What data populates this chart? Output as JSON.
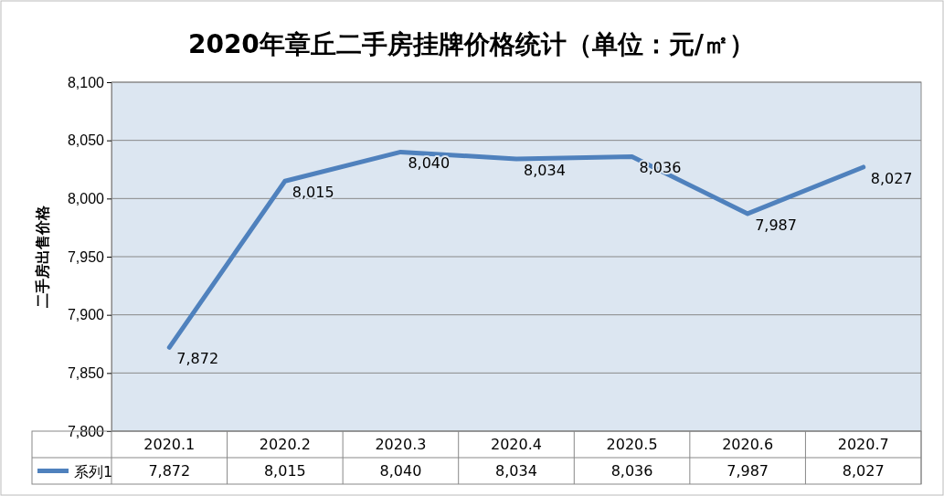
{
  "chart_data": {
    "type": "line",
    "title": "2020年章丘二手房挂牌价格统计（单位：元/㎡）",
    "ylabel": "二手房出售价格",
    "categories": [
      "2020.1",
      "2020.2",
      "2020.3",
      "2020.4",
      "2020.5",
      "2020.6",
      "2020.7"
    ],
    "series": [
      {
        "name": "系列1",
        "color": "#4f81bd",
        "values": [
          7872,
          8015,
          8040,
          8034,
          8036,
          7987,
          8027
        ],
        "value_labels": [
          "7,872",
          "8,015",
          "8,040",
          "8,034",
          "8,036",
          "7,987",
          "8,027"
        ]
      }
    ],
    "ylim": [
      7800,
      8100
    ],
    "yticks": [
      {
        "value": 7800,
        "label": "7,800"
      },
      {
        "value": 7850,
        "label": "7,850"
      },
      {
        "value": 7900,
        "label": "7,900"
      },
      {
        "value": 7950,
        "label": "7,950"
      },
      {
        "value": 8000,
        "label": "8,000"
      },
      {
        "value": 8050,
        "label": "8,050"
      },
      {
        "value": 8100,
        "label": "8,100"
      }
    ],
    "grid": "y",
    "legend": "bottom left",
    "marker": "none",
    "line_style": "solid"
  }
}
